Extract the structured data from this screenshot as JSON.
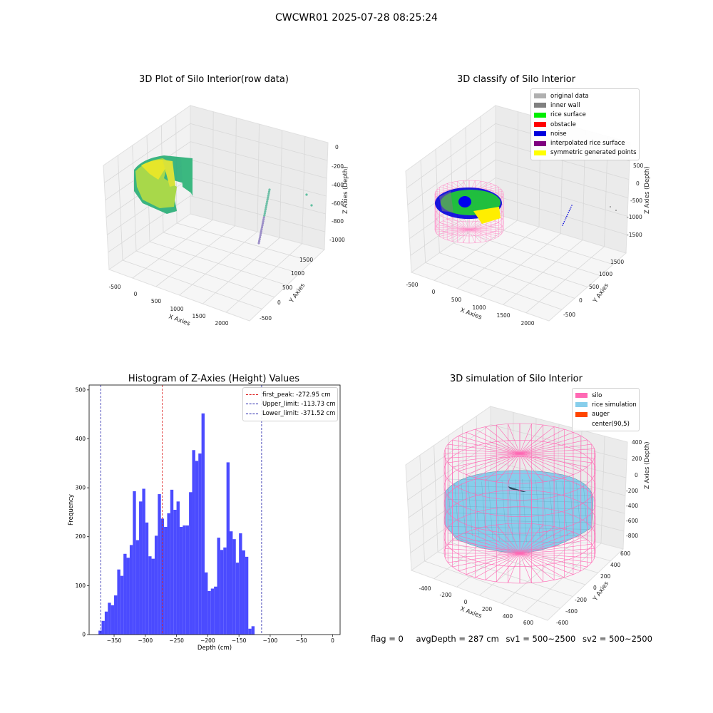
{
  "figure_title": "CWCWR01 2025-07-28 08:25:24",
  "panels": {
    "raw": {
      "title": "3D Plot of Silo Interior(row data)",
      "xlabel": "X Axies",
      "ylabel": "Y Axies",
      "zlabel": "Z Axies (Depth)",
      "xticks": [
        "-500",
        "0",
        "500",
        "1000",
        "1500",
        "2000"
      ],
      "yticks": [
        "-500",
        "0",
        "500",
        "1000",
        "1500"
      ],
      "zticks": [
        "0",
        "-200",
        "-400",
        "-600",
        "-800",
        "-1000"
      ]
    },
    "classify": {
      "title": "3D classify of Silo Interior",
      "xlabel": "X Axies",
      "ylabel": "Y Axies",
      "zlabel": "Z Axies (Depth)",
      "xticks": [
        "-500",
        "0",
        "500",
        "1000",
        "1500",
        "2000"
      ],
      "yticks": [
        "-500",
        "0",
        "500",
        "1000",
        "1500"
      ],
      "zticks": [
        "500",
        "0",
        "-500",
        "-1000",
        "-1500"
      ],
      "legend": [
        {
          "label": "original data",
          "color": "#b0b0b0"
        },
        {
          "label": "inner wall",
          "color": "#808080"
        },
        {
          "label": "rice surface",
          "color": "#00ee00"
        },
        {
          "label": "obstacle",
          "color": "#ff0000"
        },
        {
          "label": "noise",
          "color": "#0000dd"
        },
        {
          "label": "interpolated rice surface",
          "color": "#800080"
        },
        {
          "label": "symmetric generated points",
          "color": "#ffff00"
        }
      ]
    },
    "simulation": {
      "title": "3D simulation of Silo Interior",
      "xlabel": "X Axies",
      "ylabel": "Y Axies",
      "zlabel": "Z Axies (Depth)",
      "xticks": [
        "-400",
        "-200",
        "0",
        "200",
        "400",
        "600"
      ],
      "yticks": [
        "-600",
        "-400",
        "-200",
        "0",
        "200",
        "400",
        "600"
      ],
      "zticks": [
        "400",
        "200",
        "0",
        "-200",
        "-400",
        "-600",
        "-800"
      ],
      "legend": [
        {
          "label": "silo",
          "color": "#ff69b4"
        },
        {
          "label": "rice simulation",
          "color": "#87ceeb"
        },
        {
          "label": "auger",
          "color": "#ff4500"
        },
        {
          "label": "center(90,5)",
          "color": ""
        }
      ]
    }
  },
  "chart_data": {
    "type": "bar",
    "title": "Histogram of Z-Axies (Height) Values",
    "xlabel": "Depth (cm)",
    "ylabel": "Frequency",
    "bar_color": "#4b4bff",
    "bin_width": 5,
    "bin_start": -375,
    "xlim": [
      -390,
      12
    ],
    "ylim": [
      0,
      510
    ],
    "xticks": [
      -350,
      -300,
      -250,
      -200,
      -150,
      -100,
      -50,
      0
    ],
    "yticks": [
      0,
      100,
      200,
      300,
      400,
      500
    ],
    "values": [
      8,
      28,
      47,
      65,
      60,
      80,
      133,
      120,
      165,
      157,
      183,
      293,
      193,
      272,
      298,
      229,
      160,
      155,
      202,
      287,
      237,
      220,
      248,
      296,
      255,
      272,
      220,
      223,
      223,
      291,
      377,
      355,
      370,
      452,
      127,
      89,
      94,
      98,
      198,
      173,
      178,
      352,
      211,
      195,
      147,
      207,
      172,
      159,
      12,
      17
    ],
    "vlines": [
      {
        "label": "first_peak: -272.95 cm",
        "value": -272.95,
        "color": "#dd2222"
      },
      {
        "label": "Upper_limit: -113.73 cm",
        "value": -113.73,
        "color": "#2222aa"
      },
      {
        "label": "Lower_limit: -371.52 cm",
        "value": -371.52,
        "color": "#2222aa"
      }
    ],
    "legend_position": "upper right"
  },
  "footer": {
    "flag": "flag = 0",
    "avg": "avgDepth = 287 cm",
    "sv1": "sv1 = 500~2500",
    "sv2": "sv2 = 500~2500"
  }
}
